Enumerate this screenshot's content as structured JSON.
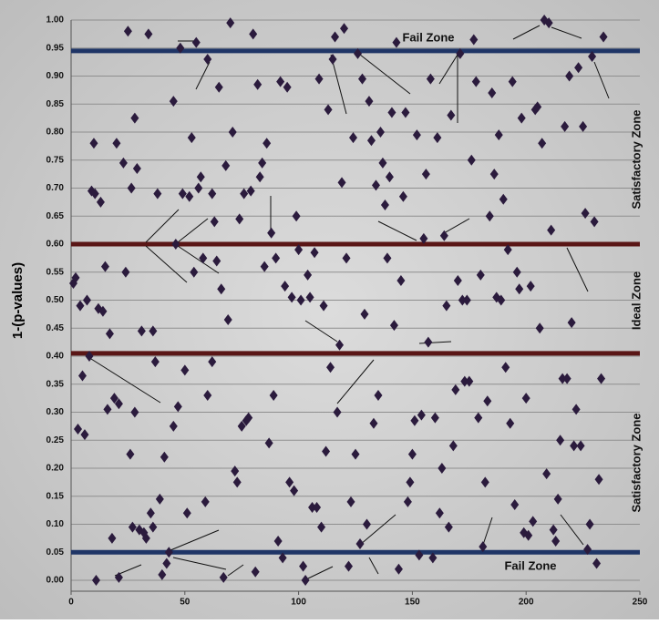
{
  "chart_data": {
    "type": "scatter",
    "y_label": "1-(p-values)",
    "color": "#2b1b3d",
    "grid": true,
    "xlim": [
      0,
      250
    ],
    "ylim": [
      0,
      1
    ],
    "xticks": [
      0,
      50,
      100,
      150,
      200,
      250
    ],
    "yticks": [
      {
        "value": 0,
        "label": "0.00"
      },
      {
        "value": 0.05,
        "label": "0.05"
      },
      {
        "value": 0.1,
        "label": "0.10"
      },
      {
        "value": 0.15,
        "label": "0.15"
      },
      {
        "value": 0.2,
        "label": "0.20"
      },
      {
        "value": 0.25,
        "label": "0.25"
      },
      {
        "value": 0.3,
        "label": "0.30"
      },
      {
        "value": 0.35,
        "label": "0.35"
      },
      {
        "value": 0.4,
        "label": "0.40"
      },
      {
        "value": 0.45,
        "label": "0.45"
      },
      {
        "value": 0.5,
        "label": "0.50"
      },
      {
        "value": 0.55,
        "label": "0.55"
      },
      {
        "value": 0.6,
        "label": "0.60"
      },
      {
        "value": 0.65,
        "label": "0.65"
      },
      {
        "value": 0.7,
        "label": "0.70"
      },
      {
        "value": 0.75,
        "label": "0.75"
      },
      {
        "value": 0.8,
        "label": "0.80"
      },
      {
        "value": 0.85,
        "label": "0.85"
      },
      {
        "value": 0.9,
        "label": "0.90"
      },
      {
        "value": 0.95,
        "label": "0.95"
      },
      {
        "value": 1,
        "label": "1.00"
      }
    ],
    "reference_lines": [
      {
        "value": 0.945,
        "color": "#1f3566"
      },
      {
        "value": 0.6,
        "color": "#5a1616"
      },
      {
        "value": 0.405,
        "color": "#5a1616"
      },
      {
        "value": 0.05,
        "color": "#1f3566"
      }
    ],
    "annotations": [
      "Fail Zone",
      "Satisfactory Zone",
      "Ideal Zone",
      "Satisfactory Zone",
      "Fail Zone"
    ],
    "x": [
      1,
      2,
      3,
      4,
      5,
      6,
      7,
      8,
      9,
      10,
      10.5,
      11,
      12,
      13,
      14,
      15,
      16,
      17,
      18,
      19,
      20,
      21,
      21,
      23,
      24,
      25,
      26,
      26.5,
      27,
      28,
      28,
      29,
      30,
      31,
      32,
      33,
      34,
      35,
      36,
      36,
      37,
      38,
      39,
      40,
      41,
      42,
      43,
      45,
      45,
      46,
      47,
      48,
      49,
      50,
      51,
      52,
      53,
      54,
      55,
      56,
      57,
      58,
      59,
      60,
      60,
      62,
      62,
      63,
      64,
      65,
      66,
      67,
      68,
      69,
      70,
      71,
      72,
      73,
      74,
      75,
      76,
      77,
      78,
      79,
      80,
      81,
      82,
      83,
      84,
      85,
      86,
      87,
      88,
      89,
      90,
      91,
      92,
      93,
      94,
      95,
      96,
      97,
      98,
      99,
      100,
      101,
      102,
      103,
      104,
      105,
      106,
      107,
      108,
      109,
      110,
      111,
      112,
      113,
      114,
      115,
      116,
      117,
      118,
      119,
      120,
      121,
      122,
      123,
      124,
      125,
      126,
      127,
      128,
      129,
      130,
      131,
      132,
      133,
      134,
      135,
      136,
      137,
      138,
      139,
      140,
      141,
      142,
      143,
      144,
      145,
      146,
      147,
      148,
      149,
      150,
      151,
      152,
      153,
      154,
      155,
      156,
      157,
      158,
      159,
      160,
      161,
      162,
      163,
      164,
      165,
      166,
      167,
      168,
      169,
      170,
      171,
      172,
      173,
      174,
      175,
      176,
      177,
      178,
      179,
      180,
      181,
      182,
      183,
      184,
      185,
      186,
      187,
      188,
      189,
      190,
      191,
      192,
      193,
      194,
      195,
      196,
      197,
      198,
      199,
      200,
      201,
      202,
      203,
      204,
      205,
      206,
      207,
      208,
      209,
      210,
      211,
      212,
      213,
      214,
      215,
      216,
      217,
      218,
      219,
      220,
      221,
      222,
      223,
      224,
      225,
      226,
      227,
      228,
      229,
      230,
      231,
      232,
      233,
      234
    ],
    "values": [
      0.53,
      0.54,
      0.27,
      0.49,
      0.365,
      0.26,
      0.5,
      0.4,
      0.695,
      0.78,
      0.69,
      0,
      0.485,
      0.675,
      0.48,
      0.56,
      0.305,
      0.44,
      0.075,
      0.325,
      0.78,
      0.315,
      0.005,
      0.745,
      0.55,
      0.98,
      0.225,
      0.7,
      0.095,
      0.3,
      0.825,
      0.735,
      0.09,
      0.445,
      0.085,
      0.075,
      0.975,
      0.12,
      0.445,
      0.095,
      0.39,
      0.69,
      0.145,
      0.01,
      0.22,
      0.03,
      0.05,
      0.275,
      0.855,
      0.6,
      0.31,
      0.95,
      0.69,
      0.375,
      0.12,
      0.685,
      0.79,
      0.55,
      0.96,
      0.7,
      0.72,
      0.575,
      0.14,
      0.33,
      0.93,
      0.39,
      0.69,
      0.64,
      0.57,
      0.88,
      0.52,
      0.005,
      0.74,
      0.465,
      0.995,
      0.8,
      0.195,
      0.175,
      0.645,
      0.275,
      0.69,
      0.285,
      0.29,
      0.695,
      0.975,
      0.015,
      0.885,
      0.72,
      0.745,
      0.56,
      0.78,
      0.245,
      0.62,
      0.33,
      0.575,
      0.07,
      0.89,
      0.04,
      0.525,
      0.88,
      0.175,
      0.505,
      0.16,
      0.65,
      0.59,
      0.5,
      0.025,
      0,
      0.545,
      0.505,
      0.13,
      0.585,
      0.13,
      0.895,
      0.095,
      0.49,
      0.23,
      0.84,
      0.38,
      0.93,
      0.97,
      0.3,
      0.42,
      0.71,
      0.985,
      0.575,
      0.025,
      0.14,
      0.79,
      0.225,
      0.94,
      0.065,
      0.895,
      0.475,
      0.1,
      0.855,
      0.785,
      0.28,
      0.705,
      0.33,
      0.8,
      0.745,
      0.67,
      0.575,
      0.72,
      0.835,
      0.455,
      0.96,
      0.02,
      0.535,
      0.685,
      0.835,
      0.14,
      0.175,
      0.225,
      0.285,
      0.795,
      0.045,
      0.295,
      0.61,
      0.725,
      0.425,
      0.895,
      0.04,
      0.29,
      0.79,
      0.12,
      0.2,
      0.615,
      0.49,
      0.095,
      0.83,
      0.24,
      0.34,
      0.535,
      0.94,
      0.5,
      0.355,
      0.5,
      0.355,
      0.75,
      0.965,
      0.89,
      0.29,
      0.545,
      0.06,
      0.175,
      0.32,
      0.65,
      0.87,
      0.725,
      0.505,
      0.795,
      0.5,
      0.68,
      0.38,
      0.59,
      0.28,
      0.89,
      0.135,
      0.55,
      0.52,
      0.825,
      0.085,
      0.325,
      0.08,
      0.525,
      0.105,
      0.84,
      0.845,
      0.45,
      0.78,
      1,
      0.19,
      0.995,
      0.625,
      0.09,
      0.07,
      0.145,
      0.25,
      0.36,
      0.81,
      0.36,
      0.9,
      0.46,
      0.24,
      0.305,
      0.915,
      0.24,
      0.81,
      0.655,
      0.055,
      0.1,
      0.935,
      0.64,
      0.03,
      0.18,
      0.36,
      0.97
    ]
  }
}
